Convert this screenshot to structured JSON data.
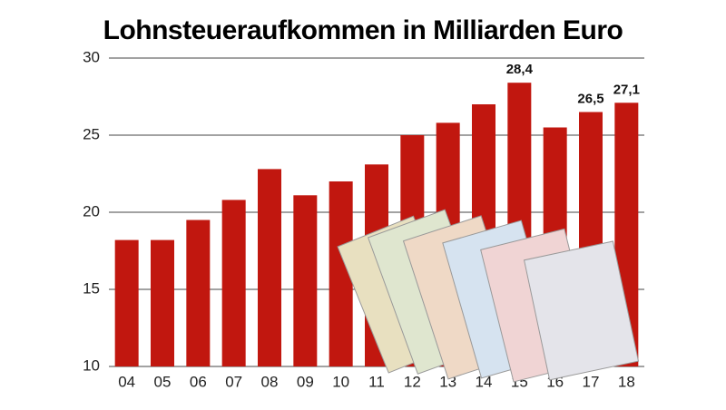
{
  "chart_data": {
    "type": "bar",
    "title": "Lohnsteueraufkommen in Milliarden Euro",
    "categories": [
      "04",
      "05",
      "06",
      "07",
      "08",
      "09",
      "10",
      "11",
      "12",
      "13",
      "14",
      "15",
      "16",
      "17",
      "18"
    ],
    "values": [
      18.2,
      18.2,
      19.5,
      20.8,
      22.8,
      21.1,
      22.0,
      23.1,
      25.0,
      25.8,
      27.0,
      28.4,
      25.5,
      26.5,
      27.1
    ],
    "value_labels": [
      null,
      null,
      null,
      null,
      null,
      null,
      null,
      null,
      null,
      null,
      null,
      "28,4",
      null,
      "26,5",
      "27,1"
    ],
    "color": "#c1170f",
    "ylim": [
      10,
      30
    ],
    "yticks": [
      10,
      15,
      20,
      25,
      30
    ],
    "grid": true
  }
}
